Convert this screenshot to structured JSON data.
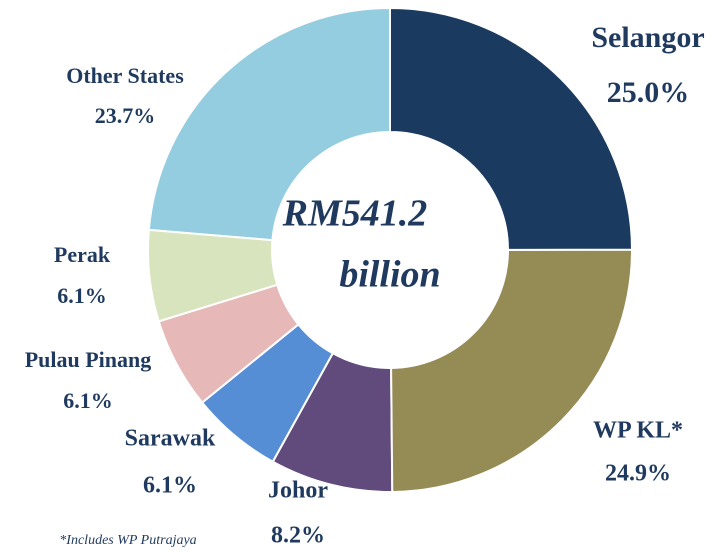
{
  "chart_data": {
    "type": "donut",
    "categories": [
      "Selangor",
      "WP KL*",
      "Johor",
      "Sarawak",
      "Pulau Pinang",
      "Perak",
      "Other States"
    ],
    "values": [
      25.0,
      24.9,
      8.2,
      6.1,
      6.1,
      6.1,
      23.7
    ],
    "value_labels": [
      "25.0%",
      "24.9%",
      "8.2%",
      "6.1%",
      "6.1%",
      "6.1%",
      "23.7%"
    ],
    "colors": [
      "#1b3a5f",
      "#958b55",
      "#614a7c",
      "#568ed6",
      "#e6b9b8",
      "#d8e4bd",
      "#93cddf"
    ],
    "center_label": [
      "RM541.2",
      "billion"
    ],
    "footnote": "*Includes WP Putrajaya"
  }
}
